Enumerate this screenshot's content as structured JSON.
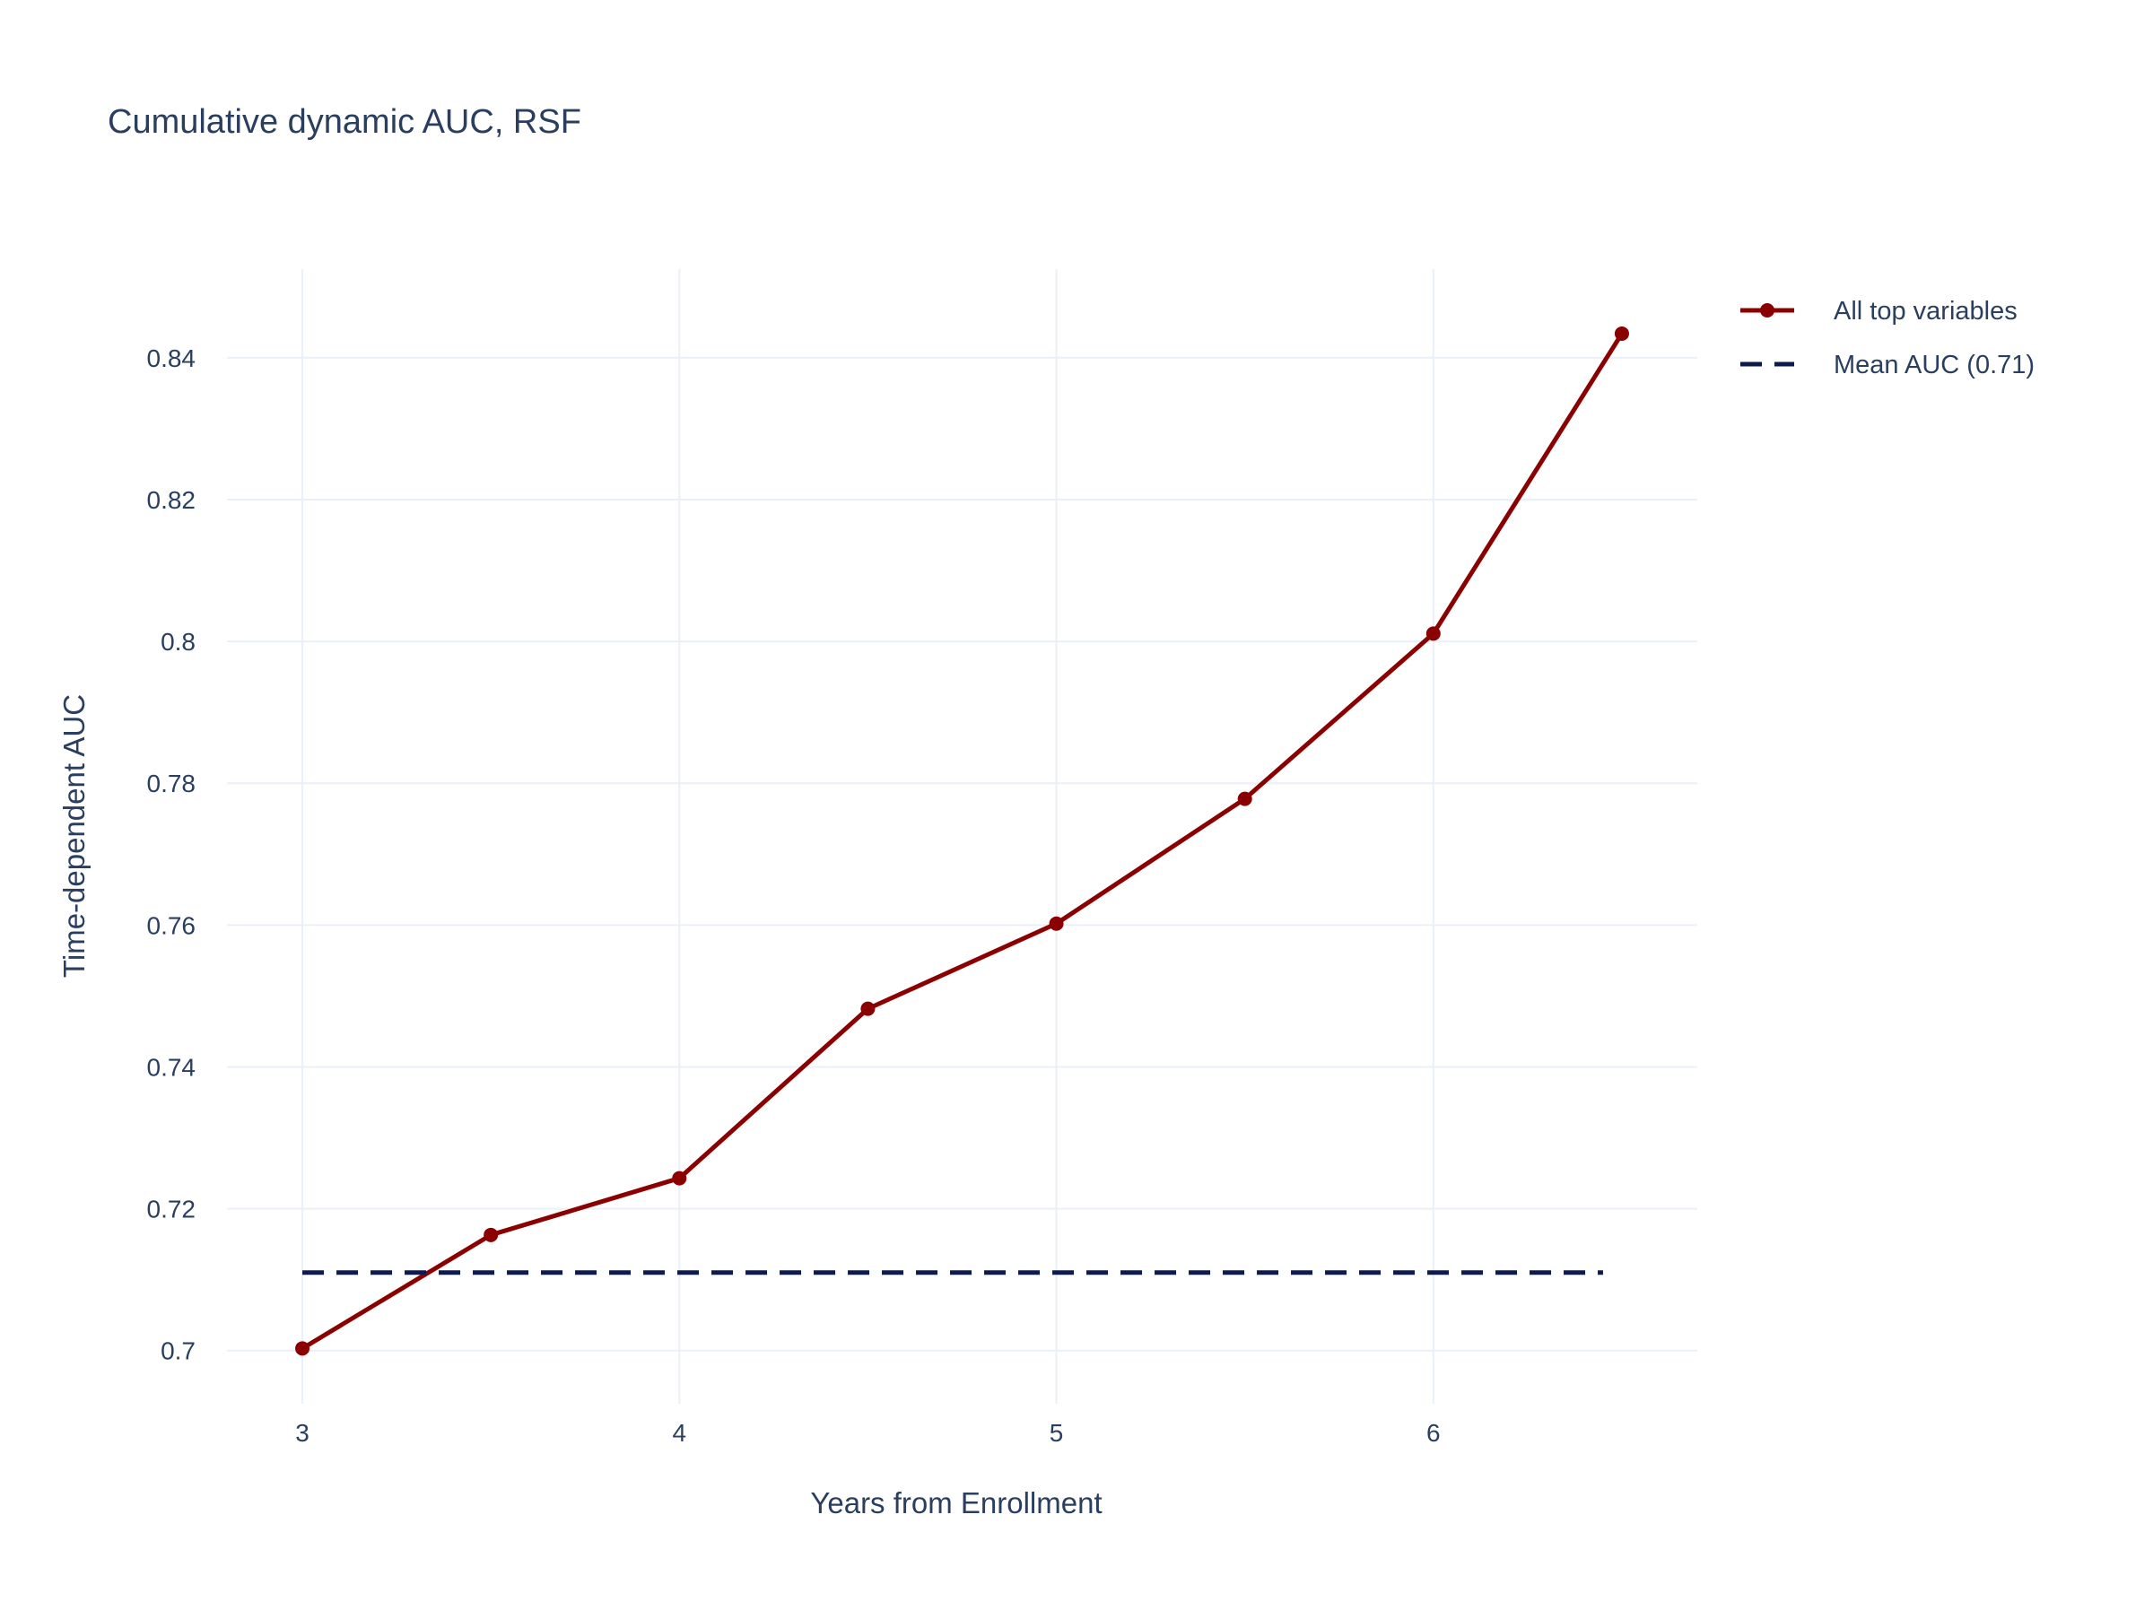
{
  "chart_data": {
    "type": "line",
    "title": "Cumulative dynamic AUC, RSF",
    "xlabel": "Years from Enrollment",
    "ylabel": "Time-dependent AUC",
    "xlim": [
      2.8,
      6.7
    ],
    "ylim": [
      0.6925,
      0.8525
    ],
    "x_ticks": [
      3,
      4,
      5,
      6
    ],
    "x_tick_labels": [
      "3",
      "4",
      "5",
      "6"
    ],
    "y_ticks": [
      0.7,
      0.72,
      0.74,
      0.76,
      0.78,
      0.8,
      0.82,
      0.84
    ],
    "y_tick_labels": [
      "0.7",
      "0.72",
      "0.74",
      "0.76",
      "0.78",
      "0.8",
      "0.82",
      "0.84"
    ],
    "grid": true,
    "legend_position": "top-right, outside plot",
    "series": [
      {
        "name": "All top variables",
        "style": "lines+markers",
        "color": "#8b0000",
        "x": [
          3.0,
          3.5,
          4.0,
          4.5,
          5.0,
          5.5,
          6.0,
          6.5
        ],
        "y": [
          0.7003,
          0.7163,
          0.7243,
          0.7482,
          0.7602,
          0.7778,
          0.8011,
          0.8434
        ]
      },
      {
        "name": "Mean AUC (0.71)",
        "style": "dash",
        "color": "#0d1b4c",
        "x": [
          3.0,
          6.45
        ],
        "y": [
          0.711,
          0.711
        ]
      }
    ]
  }
}
